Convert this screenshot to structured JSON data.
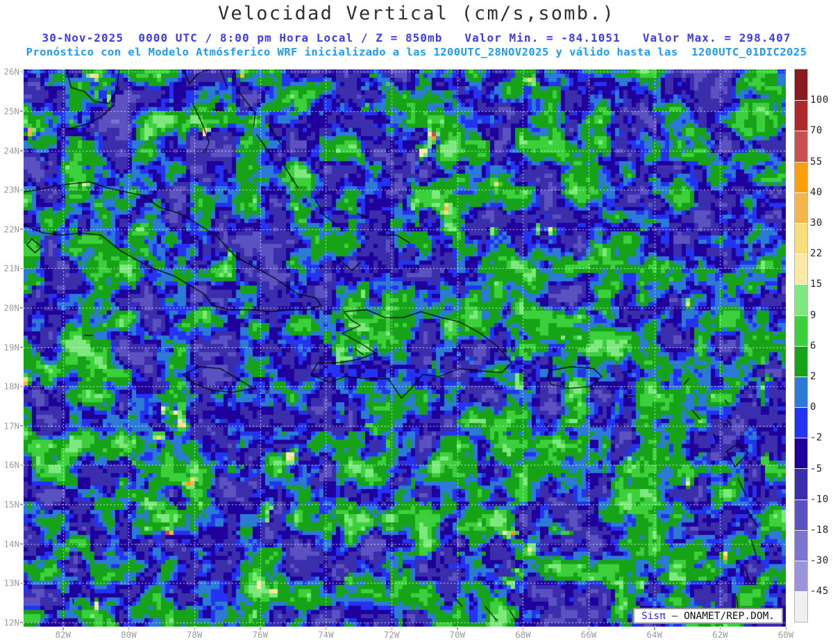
{
  "header": {
    "title": "Velocidad Vertical (cm/s,somb.)",
    "title_color": "#2f2f2f",
    "line1": "30-Nov-2025  0000 UTC / 8:00 pm Hora Local / Z = 850mb   Valor Min. = -84.1051   Valor Max. = 298.407",
    "line1_color": "#3b3bf0",
    "line2": "Pronóstico con el Modelo Atmósferico WRF inicializado a las 1200UTC_28NOV2025 y válido hasta las  1200UTC_01DIC2025",
    "line2_color": "#1e9af0"
  },
  "axes": {
    "lat_labels": [
      "26N",
      "25N",
      "24N",
      "23N",
      "22N",
      "21N",
      "20N",
      "19N",
      "18N",
      "17N",
      "16N",
      "15N",
      "14N",
      "13N",
      "12N"
    ],
    "lon_labels": [
      "82W",
      "80W",
      "78W",
      "76W",
      "74W",
      "72W",
      "70W",
      "68W",
      "66W",
      "64W",
      "62W",
      "60W"
    ],
    "label_color": "#9c9c9c"
  },
  "colorbar": {
    "tick_labels": [
      "100",
      "70",
      "55",
      "40",
      "30",
      "22",
      "15",
      "9",
      "6",
      "2",
      "0",
      "-2",
      "-5",
      "-10",
      "-18",
      "-30",
      "-45"
    ],
    "segment_colors_top_to_bottom": [
      "#8b1a20",
      "#ad2a2a",
      "#c85050",
      "#fc9f0c",
      "#f6b44c",
      "#f9dd7b",
      "#fae9a5",
      "#7ee87e",
      "#3cd13c",
      "#17a317",
      "#2b7bd6",
      "#2433f2",
      "#20009c",
      "#3b2eac",
      "#5b52c2",
      "#7d73d0",
      "#9c93de",
      "#efefef"
    ],
    "label_color": "#222222"
  },
  "watermark": {
    "brand": "Sisπ",
    "rest": " — ONAMET/REP.DOM."
  },
  "chart_data": {
    "type": "heatmap",
    "title": "Velocidad Vertical (cm/s,somb.)",
    "variable": "Velocidad Vertical",
    "units": "cm/s",
    "level": "850mb",
    "valid_time": "30-Nov-2025 0000 UTC / 8:00 pm Hora Local",
    "model": "WRF",
    "initialized": "1200UTC_28NOV2025",
    "valid_until": "1200UTC_01DIC2025",
    "value_min": -84.1051,
    "value_max": 298.407,
    "contour_levels": [
      -45,
      -30,
      -18,
      -10,
      -5,
      -2,
      0,
      2,
      6,
      9,
      15,
      22,
      30,
      40,
      55,
      70,
      100
    ],
    "lat_range_n": [
      12,
      26
    ],
    "lon_range_w": [
      82,
      60
    ],
    "grid": "dotted white lines, 1° latitude / 2° longitude",
    "source": "ONAMET/REP.DOM."
  }
}
